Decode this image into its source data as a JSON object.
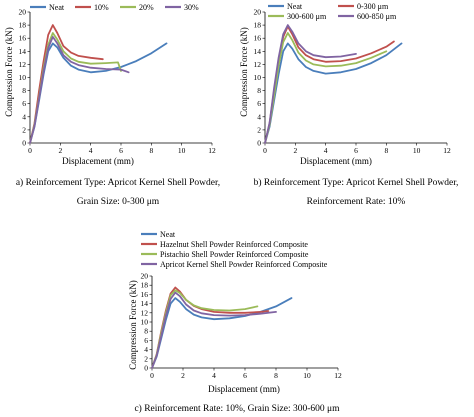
{
  "chart_data": [
    {
      "type": "line",
      "xlabel": "Displacement (mm)",
      "ylabel": "Compression Force (kN)",
      "xlim": [
        0,
        12
      ],
      "ylim": [
        0,
        20
      ],
      "xticks": [
        "0",
        "2",
        "4",
        "6",
        "8",
        "10",
        "12"
      ],
      "yticks": [
        "0",
        "2",
        "4",
        "6",
        "8",
        "10",
        "12",
        "14",
        "16",
        "18",
        "20"
      ],
      "grid": false,
      "legend_placement": "top",
      "caption": "a) Reinforcement Type: Apricot Kernel Shell Powder, Grain Size: 0-300 μm",
      "series": [
        {
          "name": "Neat",
          "color": "#4a7ebb",
          "x": [
            0,
            0.3,
            0.6,
            0.9,
            1.2,
            1.5,
            1.8,
            2.2,
            2.7,
            3.2,
            4.0,
            5.0,
            6.0,
            7.0,
            8.0,
            9.0
          ],
          "y": [
            0,
            2.5,
            6.5,
            10.5,
            14.0,
            15.2,
            14.6,
            13.0,
            11.8,
            11.2,
            10.8,
            11.0,
            11.6,
            12.5,
            13.7,
            15.2
          ]
        },
        {
          "name": "10%",
          "color": "#c0504d",
          "x": [
            0,
            0.3,
            0.6,
            0.9,
            1.2,
            1.5,
            1.8,
            2.2,
            2.7,
            3.2,
            4.0,
            4.8
          ],
          "y": [
            0,
            3.0,
            8.0,
            12.5,
            16.5,
            18.0,
            16.8,
            14.8,
            13.8,
            13.3,
            13.0,
            12.8
          ]
        },
        {
          "name": "20%",
          "color": "#9bbb59",
          "x": [
            0,
            0.3,
            0.6,
            0.9,
            1.2,
            1.5,
            1.8,
            2.2,
            2.7,
            3.2,
            4.0,
            5.0,
            5.8,
            6.0
          ],
          "y": [
            0,
            2.8,
            7.0,
            11.5,
            15.0,
            16.8,
            15.8,
            14.0,
            12.9,
            12.4,
            12.1,
            12.2,
            12.3,
            11.0
          ]
        },
        {
          "name": "30%",
          "color": "#8064a2",
          "x": [
            0,
            0.3,
            0.6,
            0.9,
            1.2,
            1.5,
            1.8,
            2.2,
            2.7,
            3.2,
            4.0,
            5.0,
            6.0,
            6.5
          ],
          "y": [
            0,
            2.6,
            6.8,
            11.0,
            14.5,
            16.2,
            15.2,
            13.4,
            12.4,
            11.9,
            11.5,
            11.3,
            11.2,
            10.8
          ]
        }
      ]
    },
    {
      "type": "line",
      "xlabel": "Displacement (mm)",
      "ylabel": "Compression Force (kN)",
      "xlim": [
        0,
        12
      ],
      "ylim": [
        0,
        20
      ],
      "xticks": [
        "0",
        "2",
        "4",
        "6",
        "8",
        "10",
        "12"
      ],
      "yticks": [
        "0",
        "2",
        "4",
        "6",
        "8",
        "10",
        "12",
        "14",
        "16",
        "18",
        "20"
      ],
      "grid": false,
      "legend_placement": "top",
      "caption": "b) Reinforcement Type: Apricot Kernel Shell Powder, Reinforcement Rate: 10%",
      "series": [
        {
          "name": "Neat",
          "color": "#4a7ebb",
          "x": [
            0,
            0.3,
            0.6,
            0.9,
            1.2,
            1.5,
            1.8,
            2.2,
            2.7,
            3.2,
            4.0,
            5.0,
            6.0,
            7.0,
            8.0,
            9.0
          ],
          "y": [
            0,
            2.5,
            6.5,
            10.5,
            14.0,
            15.2,
            14.4,
            12.8,
            11.6,
            11.0,
            10.6,
            10.8,
            11.3,
            12.2,
            13.4,
            15.2
          ]
        },
        {
          "name": "0-300 μm",
          "color": "#c0504d",
          "x": [
            0,
            0.3,
            0.6,
            0.9,
            1.2,
            1.5,
            1.8,
            2.2,
            2.7,
            3.2,
            4.0,
            5.0,
            6.0,
            7.0,
            8.0,
            8.5
          ],
          "y": [
            0,
            3.0,
            8.0,
            12.5,
            16.2,
            17.8,
            16.6,
            14.6,
            13.4,
            12.8,
            12.4,
            12.5,
            12.9,
            13.7,
            14.7,
            15.5
          ]
        },
        {
          "name": "300-600 μm",
          "color": "#9bbb59",
          "x": [
            0,
            0.3,
            0.6,
            0.9,
            1.2,
            1.5,
            1.8,
            2.2,
            2.7,
            3.2,
            4.0,
            5.0,
            6.0,
            7.0,
            8.0
          ],
          "y": [
            0,
            2.8,
            7.2,
            11.8,
            15.4,
            16.8,
            15.7,
            13.8,
            12.6,
            12.0,
            11.7,
            11.8,
            12.2,
            13.0,
            14.0
          ]
        },
        {
          "name": "600-850 μm",
          "color": "#8064a2",
          "x": [
            0,
            0.3,
            0.6,
            0.9,
            1.2,
            1.5,
            1.8,
            2.2,
            2.7,
            3.2,
            4.0,
            5.0,
            6.0
          ],
          "y": [
            0,
            3.1,
            8.4,
            13.0,
            16.6,
            18.0,
            17.0,
            15.2,
            14.0,
            13.4,
            13.1,
            13.2,
            13.6
          ]
        }
      ]
    },
    {
      "type": "line",
      "xlabel": "Displacement (mm)",
      "ylabel": "Compression Force (kN)",
      "xlim": [
        0,
        12
      ],
      "ylim": [
        0,
        20
      ],
      "xticks": [
        "0",
        "2",
        "4",
        "6",
        "8",
        "10",
        "12"
      ],
      "yticks": [
        "0",
        "2",
        "4",
        "6",
        "8",
        "10",
        "12",
        "14",
        "16",
        "18",
        "20"
      ],
      "grid": false,
      "legend_placement": "top-left",
      "caption": "c) Reinforcement Rate: 10%, Grain Size: 300-600 μm",
      "series": [
        {
          "name": "Neat",
          "color": "#4a7ebb",
          "x": [
            0,
            0.3,
            0.6,
            0.9,
            1.2,
            1.5,
            1.8,
            2.2,
            2.7,
            3.2,
            4.0,
            5.0,
            6.0,
            7.0,
            8.0,
            9.0
          ],
          "y": [
            0,
            2.5,
            6.5,
            10.5,
            14.0,
            15.2,
            14.4,
            12.8,
            11.6,
            11.0,
            10.6,
            10.8,
            11.3,
            12.2,
            13.4,
            15.2
          ]
        },
        {
          "name": "Hazelnut Shell Powder Reinforced Composite",
          "color": "#c0504d",
          "x": [
            0,
            0.3,
            0.6,
            0.9,
            1.2,
            1.5,
            1.8,
            2.2,
            2.7,
            3.2,
            4.0,
            5.0,
            6.0,
            7.0,
            7.5
          ],
          "y": [
            0,
            3.0,
            8.0,
            12.5,
            16.2,
            17.5,
            16.6,
            14.8,
            13.5,
            12.8,
            12.2,
            12.0,
            12.0,
            12.2,
            12.4
          ]
        },
        {
          "name": "Pistachio Shell Powder Reinforced Composite",
          "color": "#9bbb59",
          "x": [
            0,
            0.3,
            0.6,
            0.9,
            1.2,
            1.5,
            1.8,
            2.2,
            2.7,
            3.2,
            4.0,
            5.0,
            6.0,
            6.8
          ],
          "y": [
            0,
            2.9,
            7.6,
            12.0,
            15.8,
            16.9,
            16.3,
            14.8,
            13.6,
            13.0,
            12.6,
            12.5,
            12.8,
            13.4
          ]
        },
        {
          "name": "Apricot Kernel Shell Powder Reinforced Composite",
          "color": "#8064a2",
          "x": [
            0,
            0.3,
            0.6,
            0.9,
            1.2,
            1.5,
            1.8,
            2.2,
            2.7,
            3.2,
            4.0,
            5.0,
            6.0,
            7.0,
            8.0
          ],
          "y": [
            0,
            2.7,
            7.0,
            11.4,
            15.0,
            16.4,
            15.6,
            13.8,
            12.5,
            11.9,
            11.5,
            11.4,
            11.5,
            11.8,
            12.2
          ]
        }
      ]
    }
  ]
}
